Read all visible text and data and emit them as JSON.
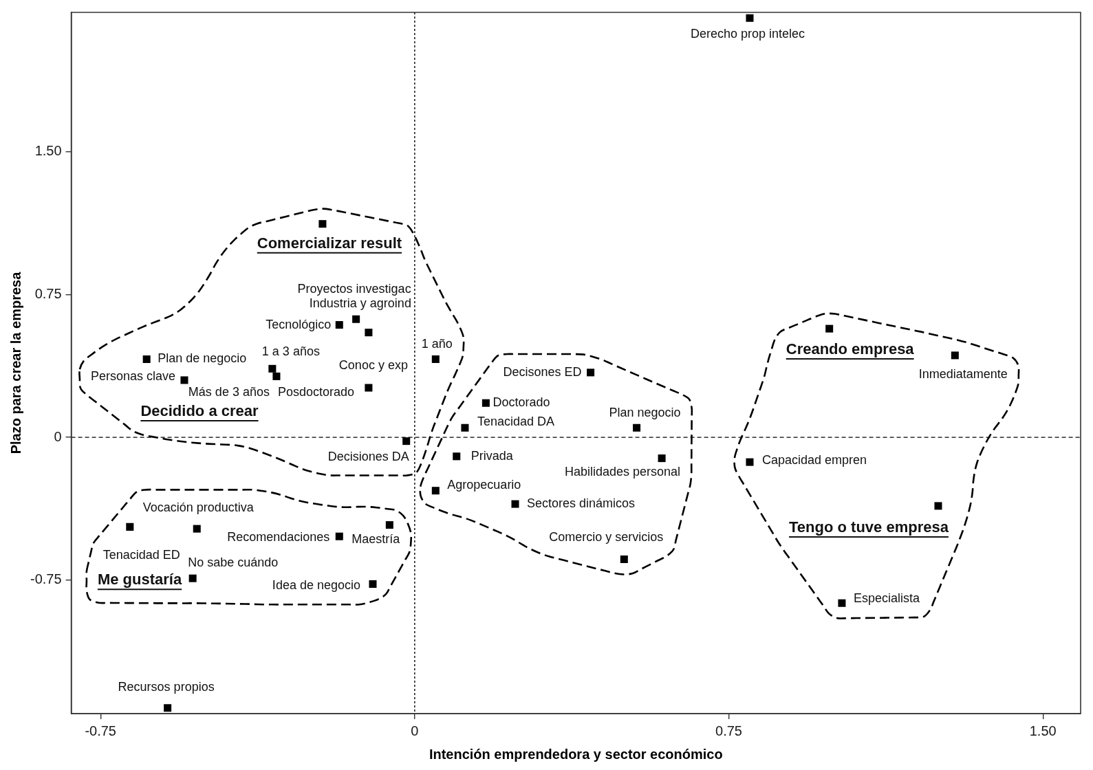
{
  "chart_data": {
    "type": "scatter",
    "xlabel": "Intención emprendedora y sector económico",
    "ylabel": "Plazo para crear la empresa",
    "x": [
      0.8,
      -0.22,
      -0.18,
      -0.14,
      -0.11,
      -0.64,
      -0.55,
      -0.34,
      -0.33,
      -0.11,
      0.05,
      0.42,
      0.17,
      0.12,
      0.53,
      -0.02,
      0.1,
      0.59,
      0.05,
      0.24,
      0.5,
      0.99,
      1.29,
      0.8,
      1.25,
      1.02,
      -0.68,
      -0.52,
      -0.18,
      -0.06,
      -0.53,
      -0.1,
      -0.59
    ],
    "values": [
      2.2,
      1.12,
      0.59,
      0.62,
      0.55,
      0.41,
      0.3,
      0.36,
      0.32,
      0.26,
      0.41,
      0.34,
      0.18,
      0.05,
      0.05,
      -0.02,
      -0.1,
      -0.11,
      -0.28,
      -0.35,
      -0.64,
      0.57,
      0.43,
      -0.13,
      -0.36,
      -0.87,
      -0.47,
      -0.48,
      -0.52,
      -0.46,
      -0.74,
      -0.77,
      -1.42
    ],
    "color": "#000000",
    "marker": "square",
    "xlim": [
      -0.82,
      1.59
    ],
    "ylim": [
      -1.45,
      2.23
    ],
    "xticks": [
      -0.75,
      0,
      0.75,
      {
        "value": 1.5,
        "label": "1.50"
      }
    ],
    "yticks": [
      -0.75,
      0,
      0.75,
      {
        "value": 1.5,
        "label": "1.50"
      }
    ],
    "ref_lines": [
      {
        "axis": "x",
        "value": 0,
        "color": "#000000",
        "line_style": "dotted"
      },
      {
        "axis": "y",
        "value": 0,
        "color": "#000000",
        "line_style": "dashed"
      }
    ],
    "annotations": [
      {
        "text": "Derecho prop intelec",
        "x": 0.8,
        "y": 2.2
      },
      {
        "text": "Comercializar result",
        "x": -0.22,
        "y": 1.12
      },
      {
        "text": "Proyectos investigac",
        "x": -0.14,
        "y": 0.62
      },
      {
        "text": "Industria y agroind",
        "x": -0.11,
        "y": 0.55
      },
      {
        "text": "Tecnológico",
        "x": -0.18,
        "y": 0.59
      },
      {
        "text": "1 año",
        "x": 0.05,
        "y": 0.41
      },
      {
        "text": "Plan de negocio",
        "x": -0.64,
        "y": 0.41
      },
      {
        "text": "1 a 3 años",
        "x": -0.34,
        "y": 0.36
      },
      {
        "text": "Personas clave",
        "x": -0.55,
        "y": 0.3
      },
      {
        "text": "Más de 3 años",
        "x": -0.33,
        "y": 0.32
      },
      {
        "text": "Conoc y exp",
        "x": -0.11,
        "y": 0.26
      },
      {
        "text": "Posdoctorado",
        "x": -0.33,
        "y": 0.32
      },
      {
        "text": "Decidido a crear",
        "x": -0.55,
        "y": 0.3
      },
      {
        "text": "Decisones ED",
        "x": 0.42,
        "y": 0.34
      },
      {
        "text": "Doctorado",
        "x": 0.17,
        "y": 0.18
      },
      {
        "text": "Tenacidad DA",
        "x": 0.12,
        "y": 0.05
      },
      {
        "text": "Plan negocio",
        "x": 0.53,
        "y": 0.05
      },
      {
        "text": "Decisiones DA",
        "x": -0.02,
        "y": -0.02
      },
      {
        "text": "Privada",
        "x": 0.1,
        "y": -0.1
      },
      {
        "text": "Habilidades personal",
        "x": 0.59,
        "y": -0.11
      },
      {
        "text": "Agropecuario",
        "x": 0.05,
        "y": -0.28
      },
      {
        "text": "Sectores dinámicos",
        "x": 0.24,
        "y": -0.35
      },
      {
        "text": "Comercio y servicios",
        "x": 0.5,
        "y": -0.64
      },
      {
        "text": "Creando empresa",
        "x": 0.99,
        "y": 0.57
      },
      {
        "text": "Inmediatamente",
        "x": 1.29,
        "y": 0.43
      },
      {
        "text": "Capacidad empren",
        "x": 0.8,
        "y": -0.13
      },
      {
        "text": "Tengo o tuve empresa",
        "x": 1.25,
        "y": -0.36
      },
      {
        "text": "Especialista",
        "x": 1.02,
        "y": -0.87
      },
      {
        "text": "Vocación productiva",
        "x": -0.52,
        "y": -0.48
      },
      {
        "text": "Tenacidad ED",
        "x": -0.68,
        "y": -0.47
      },
      {
        "text": "Recomendaciones",
        "x": -0.18,
        "y": -0.52
      },
      {
        "text": "Maestría",
        "x": -0.06,
        "y": -0.46
      },
      {
        "text": "No sabe cuándo",
        "x": -0.53,
        "y": -0.74
      },
      {
        "text": "Me gustaría",
        "x": -0.53,
        "y": -0.74
      },
      {
        "text": "Idea de negocio",
        "x": -0.1,
        "y": -0.77
      },
      {
        "text": "Recursos propios",
        "x": -0.59,
        "y": -1.42
      }
    ]
  }
}
